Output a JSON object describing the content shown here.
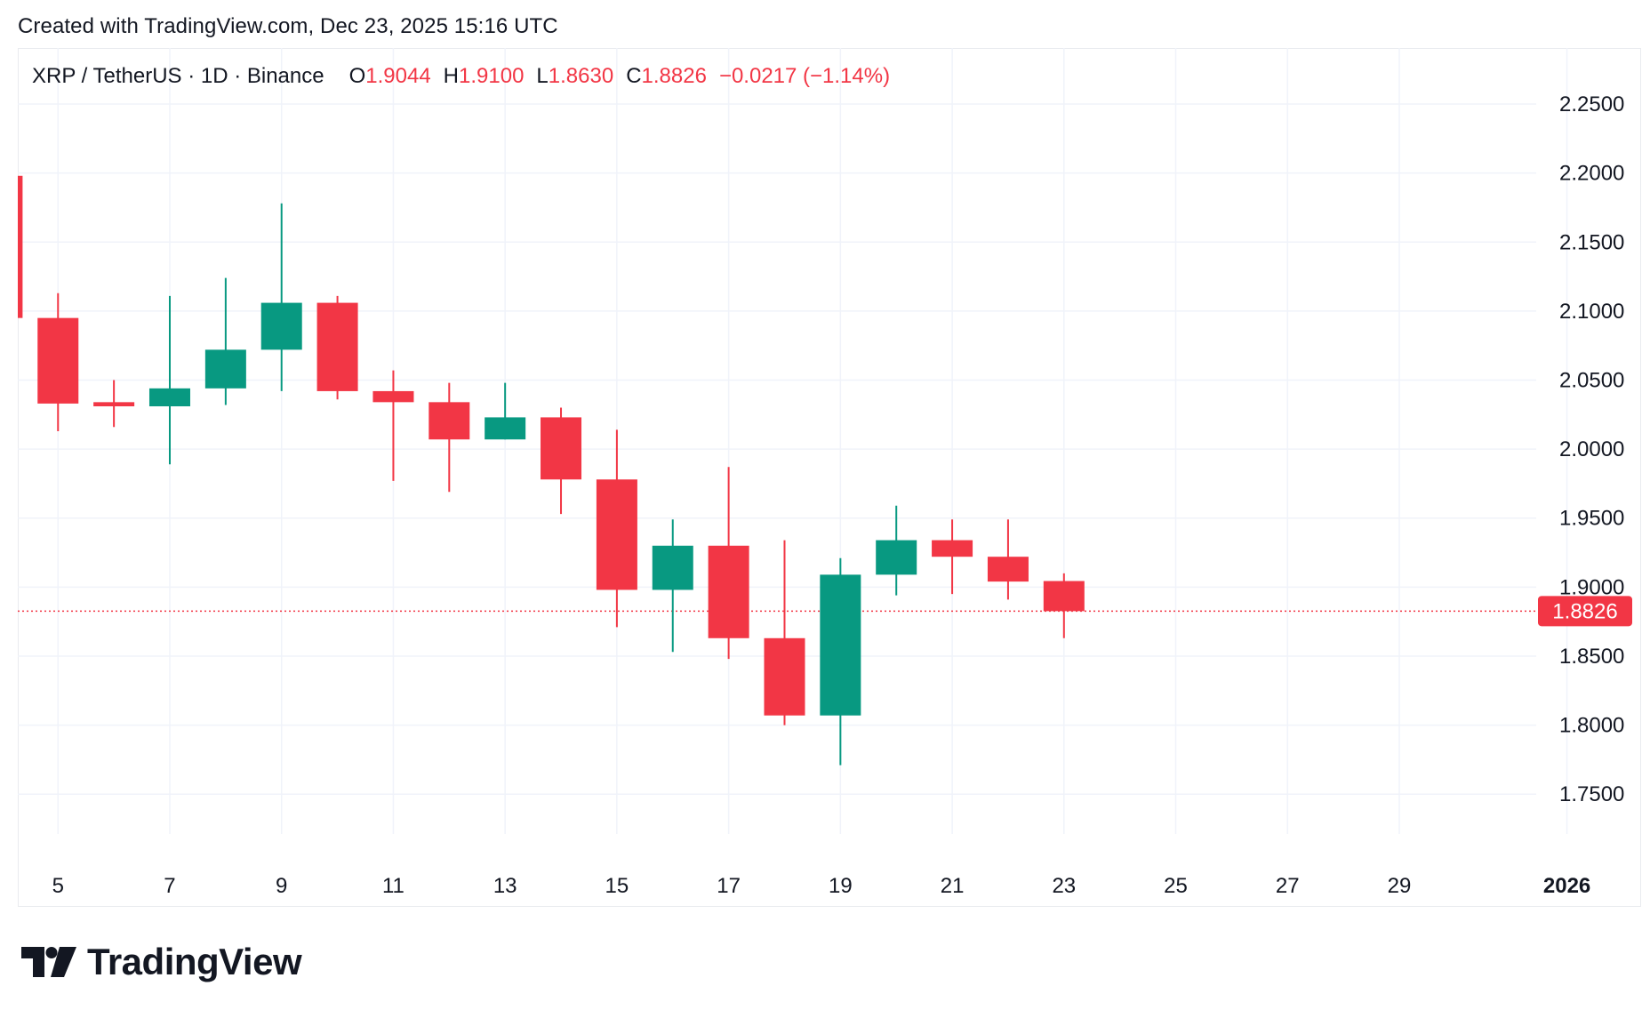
{
  "header": {
    "created_text": "Created with TradingView.com, Dec 23, 2025 15:16 UTC"
  },
  "legend": {
    "symbol": "XRP / TetherUS · 1D · Binance",
    "open_label": "O",
    "open_value": "1.9044",
    "high_label": "H",
    "high_value": "1.9100",
    "low_label": "L",
    "low_value": "1.8630",
    "close_label": "C",
    "close_value": "1.8826",
    "change": "−0.0217 (−1.14%)"
  },
  "colors": {
    "up": "#089981",
    "down": "#f23645",
    "grid": "#f0f3fa",
    "text": "#131722"
  },
  "chart_data": {
    "type": "candlestick",
    "title": "XRP / TetherUS · 1D · Binance",
    "ylim": [
      1.725,
      2.27
    ],
    "y_ticks": [
      "2.2500",
      "2.2000",
      "2.1500",
      "2.1000",
      "2.0500",
      "2.0000",
      "1.9500",
      "1.9000",
      "1.8500",
      "1.8000",
      "1.7500"
    ],
    "x_ticks": [
      {
        "day": 5,
        "label": "5"
      },
      {
        "day": 7,
        "label": "7"
      },
      {
        "day": 9,
        "label": "9"
      },
      {
        "day": 11,
        "label": "11"
      },
      {
        "day": 13,
        "label": "13"
      },
      {
        "day": 15,
        "label": "15"
      },
      {
        "day": 17,
        "label": "17"
      },
      {
        "day": 19,
        "label": "19"
      },
      {
        "day": 21,
        "label": "21"
      },
      {
        "day": 23,
        "label": "23"
      },
      {
        "day": 25,
        "label": "25"
      },
      {
        "day": 27,
        "label": "27"
      },
      {
        "day": 29,
        "label": "29"
      },
      {
        "day": 32,
        "label": "2026",
        "bold": true
      }
    ],
    "x_range": [
      4.28,
      31.45
    ],
    "candles": [
      {
        "day": 4,
        "open": 2.198,
        "high": 2.198,
        "low": 2.095,
        "close": 2.095
      },
      {
        "day": 5,
        "open": 2.095,
        "high": 2.113,
        "low": 2.013,
        "close": 2.033
      },
      {
        "day": 6,
        "open": 2.034,
        "high": 2.05,
        "low": 2.016,
        "close": 2.031
      },
      {
        "day": 7,
        "open": 2.031,
        "high": 2.111,
        "low": 1.989,
        "close": 2.044
      },
      {
        "day": 8,
        "open": 2.044,
        "high": 2.124,
        "low": 2.032,
        "close": 2.072
      },
      {
        "day": 9,
        "open": 2.072,
        "high": 2.178,
        "low": 2.042,
        "close": 2.106
      },
      {
        "day": 10,
        "open": 2.106,
        "high": 2.111,
        "low": 2.036,
        "close": 2.042
      },
      {
        "day": 11,
        "open": 2.042,
        "high": 2.057,
        "low": 1.977,
        "close": 2.034
      },
      {
        "day": 12,
        "open": 2.034,
        "high": 2.048,
        "low": 1.969,
        "close": 2.007
      },
      {
        "day": 13,
        "open": 2.007,
        "high": 2.048,
        "low": 2.007,
        "close": 2.023
      },
      {
        "day": 14,
        "open": 2.023,
        "high": 2.03,
        "low": 1.953,
        "close": 1.978
      },
      {
        "day": 15,
        "open": 1.978,
        "high": 2.014,
        "low": 1.871,
        "close": 1.898
      },
      {
        "day": 16,
        "open": 1.898,
        "high": 1.949,
        "low": 1.853,
        "close": 1.93
      },
      {
        "day": 17,
        "open": 1.93,
        "high": 1.987,
        "low": 1.848,
        "close": 1.863
      },
      {
        "day": 18,
        "open": 1.863,
        "high": 1.934,
        "low": 1.8,
        "close": 1.807
      },
      {
        "day": 19,
        "open": 1.807,
        "high": 1.921,
        "low": 1.771,
        "close": 1.909
      },
      {
        "day": 20,
        "open": 1.909,
        "high": 1.959,
        "low": 1.894,
        "close": 1.934
      },
      {
        "day": 21,
        "open": 1.934,
        "high": 1.949,
        "low": 1.895,
        "close": 1.922
      },
      {
        "day": 22,
        "open": 1.922,
        "high": 1.949,
        "low": 1.891,
        "close": 1.904
      },
      {
        "day": 23,
        "open": 1.9044,
        "high": 1.91,
        "low": 1.863,
        "close": 1.8826
      }
    ],
    "last_price": 1.8826,
    "last_price_label": "1.8826"
  },
  "brand": {
    "name": "TradingView"
  }
}
